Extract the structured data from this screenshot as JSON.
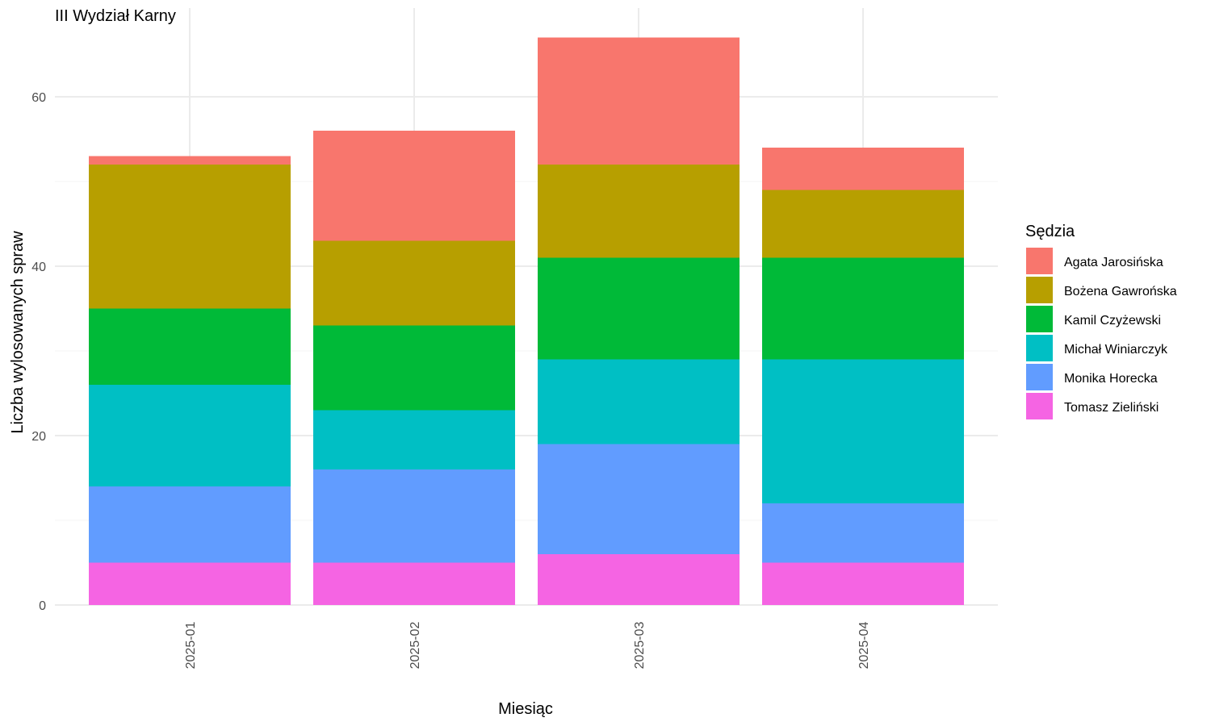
{
  "chart_data": {
    "type": "bar",
    "stacked": true,
    "title": "III Wydział Karny",
    "xlabel": "Miesiąc",
    "ylabel": "Liczba wylosowanych spraw",
    "categories": [
      "2025-01",
      "2025-02",
      "2025-03",
      "2025-04"
    ],
    "ylim": [
      0,
      70
    ],
    "yticks": [
      0,
      20,
      40,
      60
    ],
    "grid": true,
    "legend": {
      "title": "Sędzia",
      "position": "right"
    },
    "series": [
      {
        "name": "Tomasz Zieliński",
        "color": "#F564E3",
        "values": [
          5,
          5,
          6,
          5
        ]
      },
      {
        "name": "Monika Horecka",
        "color": "#619CFF",
        "values": [
          9,
          11,
          13,
          7
        ]
      },
      {
        "name": "Michał Winiarczyk",
        "color": "#00BFC4",
        "values": [
          12,
          7,
          10,
          17
        ]
      },
      {
        "name": "Kamil Czyżewski",
        "color": "#00BA38",
        "values": [
          9,
          10,
          12,
          12
        ]
      },
      {
        "name": "Bożena Gawrońska",
        "color": "#B79F00",
        "values": [
          17,
          10,
          11,
          8
        ]
      },
      {
        "name": "Agata Jarosińska",
        "color": "#F8766D",
        "values": [
          1,
          13,
          15,
          5
        ]
      }
    ]
  }
}
